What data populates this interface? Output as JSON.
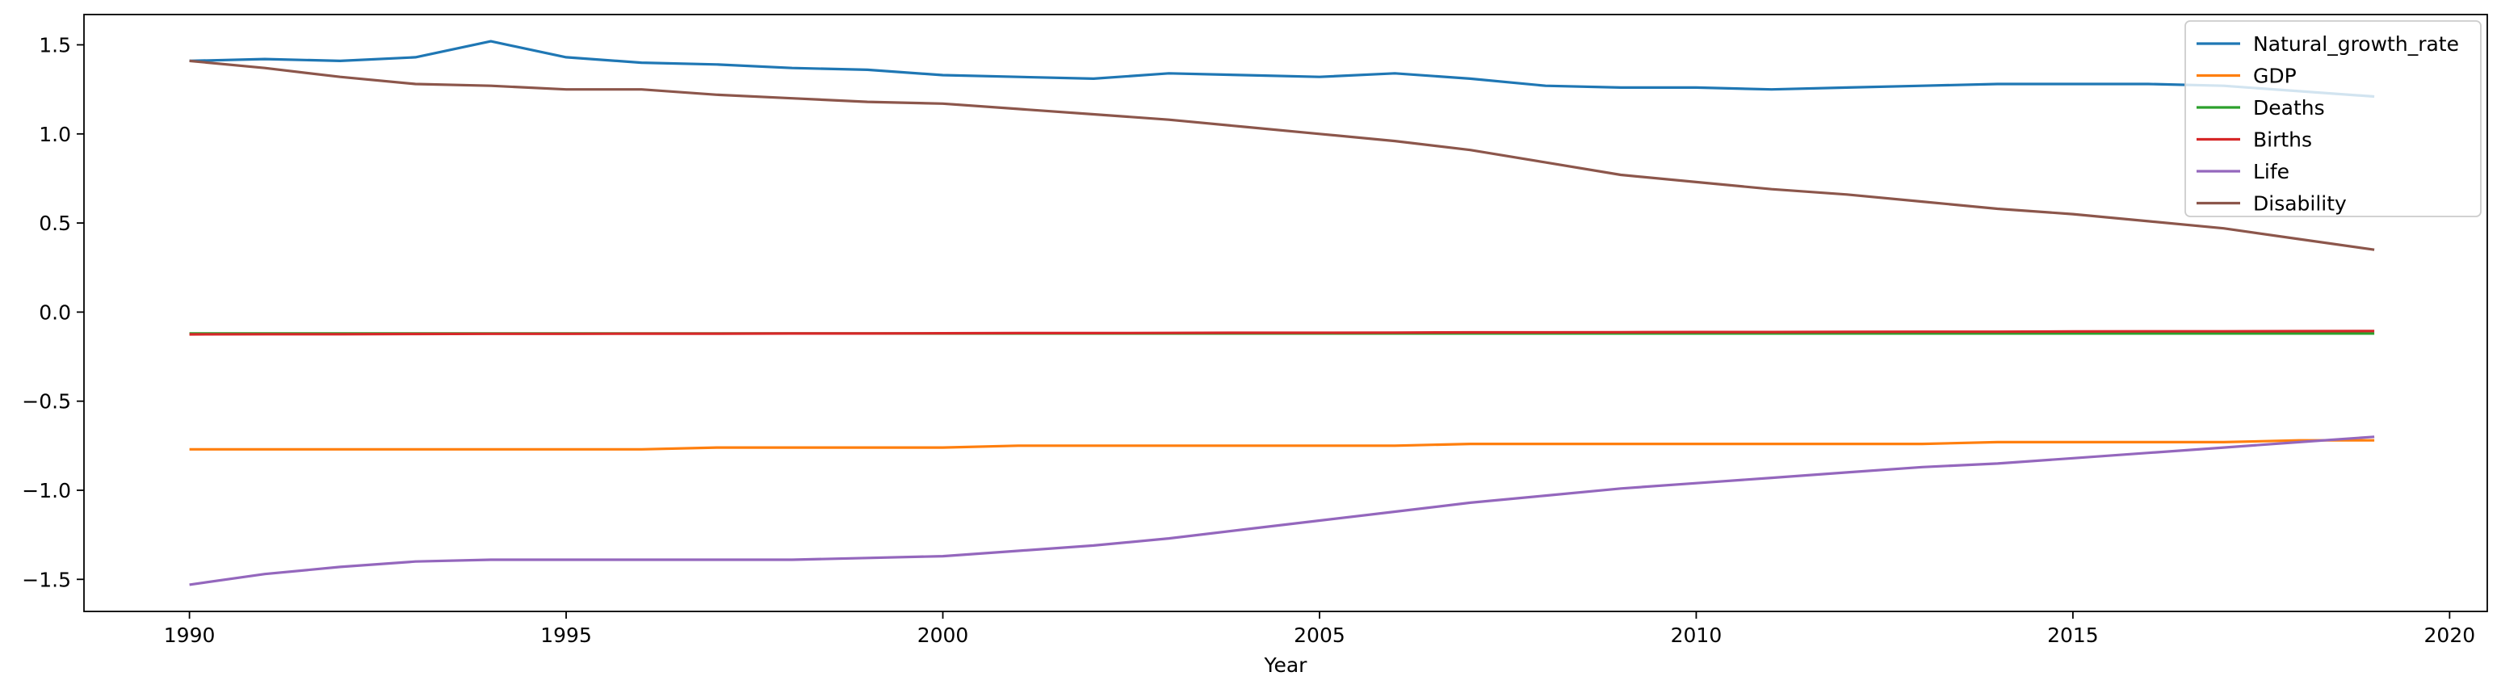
{
  "chart_data": {
    "type": "line",
    "title": "",
    "xlabel": "Year",
    "ylabel": "",
    "xlim": [
      1988.6,
      2020.5
    ],
    "ylim": [
      -1.68,
      1.67
    ],
    "xticks": [
      1990,
      1995,
      2000,
      2005,
      2010,
      2015,
      2020
    ],
    "yticks": [
      -1.5,
      -1.0,
      -0.5,
      0.0,
      0.5,
      1.0,
      1.5
    ],
    "ytick_labels": [
      "−1.5",
      "−1.0",
      "−0.5",
      "0.0",
      "0.5",
      "1.0",
      "1.5"
    ],
    "grid": false,
    "legend_position": "top-right",
    "x": [
      1990,
      1991,
      1992,
      1993,
      1994,
      1995,
      1996,
      1997,
      1998,
      1999,
      2000,
      2001,
      2002,
      2003,
      2004,
      2005,
      2006,
      2007,
      2008,
      2009,
      2010,
      2011,
      2012,
      2013,
      2014,
      2015,
      2016,
      2017,
      2018,
      2019
    ],
    "series": [
      {
        "name": "Natural_growth_rate",
        "color": "#1f77b4",
        "values": [
          1.41,
          1.42,
          1.41,
          1.43,
          1.52,
          1.43,
          1.4,
          1.39,
          1.37,
          1.36,
          1.33,
          1.32,
          1.31,
          1.34,
          1.33,
          1.32,
          1.34,
          1.31,
          1.27,
          1.26,
          1.26,
          1.25,
          1.26,
          1.27,
          1.28,
          1.28,
          1.28,
          1.27,
          1.24,
          1.21
        ]
      },
      {
        "name": "GDP",
        "color": "#ff7f0e",
        "values": [
          -0.77,
          -0.77,
          -0.77,
          -0.77,
          -0.77,
          -0.77,
          -0.77,
          -0.76,
          -0.76,
          -0.76,
          -0.76,
          -0.75,
          -0.75,
          -0.75,
          -0.75,
          -0.75,
          -0.75,
          -0.74,
          -0.74,
          -0.74,
          -0.74,
          -0.74,
          -0.74,
          -0.74,
          -0.73,
          -0.73,
          -0.73,
          -0.73,
          -0.72,
          -0.72
        ]
      },
      {
        "name": "Deaths",
        "color": "#2ca02c",
        "values": [
          -0.12,
          -0.12,
          -0.12,
          -0.12,
          -0.12,
          -0.12,
          -0.12,
          -0.12,
          -0.12,
          -0.12,
          -0.12,
          -0.12,
          -0.12,
          -0.12,
          -0.12,
          -0.12,
          -0.12,
          -0.12,
          -0.12,
          -0.12,
          -0.12,
          -0.12,
          -0.12,
          -0.12,
          -0.12,
          -0.12,
          -0.12,
          -0.12,
          -0.12,
          -0.12
        ]
      },
      {
        "name": "Births",
        "color": "#d62728",
        "values": [
          -0.125,
          -0.124,
          -0.124,
          -0.123,
          -0.122,
          -0.122,
          -0.121,
          -0.121,
          -0.12,
          -0.12,
          -0.119,
          -0.118,
          -0.118,
          -0.117,
          -0.116,
          -0.116,
          -0.115,
          -0.114,
          -0.114,
          -0.113,
          -0.112,
          -0.112,
          -0.111,
          -0.11,
          -0.11,
          -0.109,
          -0.108,
          -0.108,
          -0.107,
          -0.106
        ]
      },
      {
        "name": "Life",
        "color": "#9467bd",
        "values": [
          -1.53,
          -1.47,
          -1.43,
          -1.4,
          -1.39,
          -1.39,
          -1.39,
          -1.39,
          -1.39,
          -1.38,
          -1.37,
          -1.34,
          -1.31,
          -1.27,
          -1.22,
          -1.17,
          -1.12,
          -1.07,
          -1.03,
          -0.99,
          -0.96,
          -0.93,
          -0.9,
          -0.87,
          -0.85,
          -0.82,
          -0.79,
          -0.76,
          -0.73,
          -0.7
        ]
      },
      {
        "name": "Disability",
        "color": "#8c564b",
        "values": [
          1.41,
          1.37,
          1.32,
          1.28,
          1.27,
          1.25,
          1.25,
          1.22,
          1.2,
          1.18,
          1.17,
          1.14,
          1.11,
          1.08,
          1.04,
          1.0,
          0.96,
          0.91,
          0.84,
          0.77,
          0.73,
          0.69,
          0.66,
          0.62,
          0.58,
          0.55,
          0.51,
          0.47,
          0.41,
          0.35
        ]
      }
    ]
  }
}
